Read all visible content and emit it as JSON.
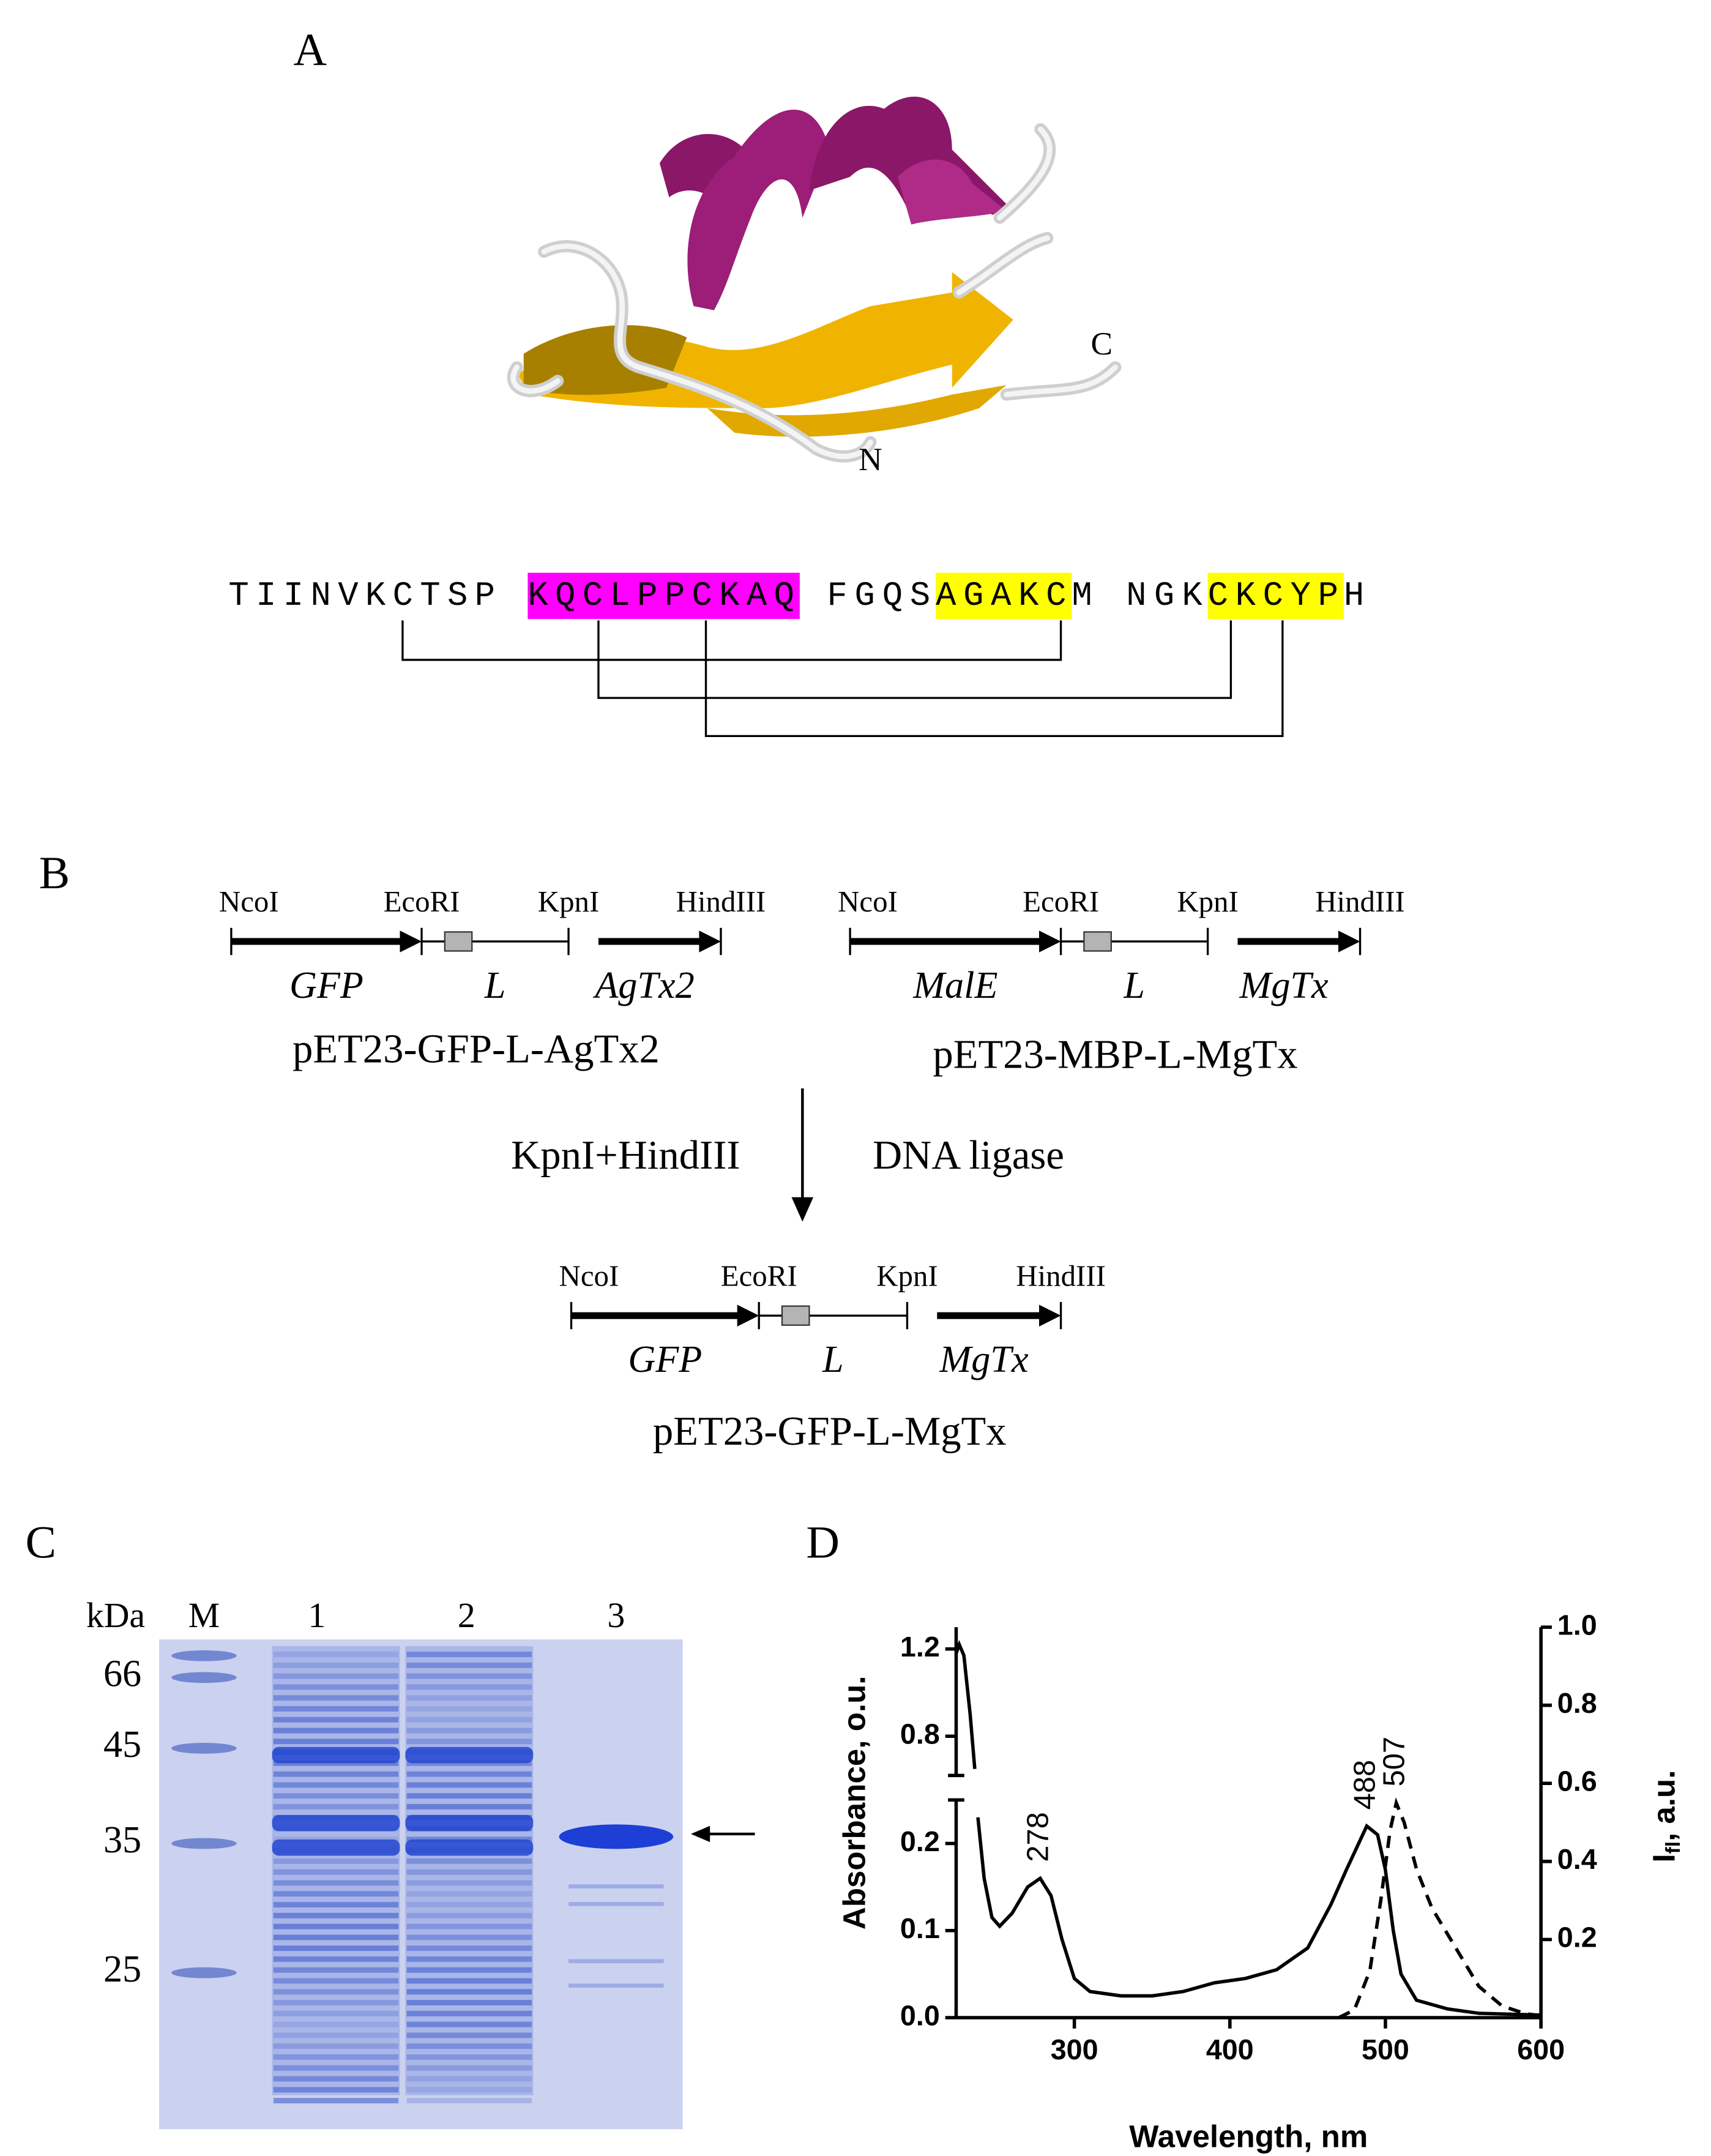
{
  "panel_a": {
    "label": "A",
    "termini": [
      "C",
      "N"
    ],
    "sequence": [
      [
        {
          "text": "TIINVKCTSP"
        }
      ],
      [
        {
          "text": "KQCLPPCKAQ",
          "color": "#ff00ff"
        }
      ],
      [
        {
          "text": "FGQS"
        },
        {
          "text": "AGAKC",
          "color": "#ffff00"
        },
        {
          "text": "M"
        }
      ],
      [
        {
          "text": "NGK"
        },
        {
          "text": "CKCYP",
          "color": "#ffff00"
        },
        {
          "text": "H"
        }
      ]
    ]
  },
  "panel_b": {
    "label": "B",
    "constructs": [
      {
        "sites": [
          "NcoI",
          "EcoRI",
          "KpnI",
          "HindIII"
        ],
        "genes": [
          "GFP",
          "L",
          "AgTx2"
        ],
        "name": "pET23-GFP-L-AgTx2"
      },
      {
        "sites": [
          "NcoI",
          "EcoRI",
          "KpnI",
          "HindIII"
        ],
        "genes": [
          "MalE",
          "L",
          "MgTx"
        ],
        "name": "pET23-MBP-L-MgTx"
      },
      {
        "sites": [
          "NcoI",
          "EcoRI",
          "KpnI",
          "HindIII"
        ],
        "genes": [
          "GFP",
          "L",
          "MgTx"
        ],
        "name": "pET23-GFP-L-MgTx"
      }
    ],
    "enzymes": "KpnI+HindIII",
    "ligase": "DNA ligase"
  },
  "panel_c": {
    "label": "C",
    "unit": "kDa",
    "lanes": [
      "M",
      "1",
      "2",
      "3"
    ],
    "markers": [
      "66",
      "45",
      "35",
      "25"
    ]
  },
  "panel_d": {
    "label": "D"
  },
  "chart_data": {
    "type": "line",
    "xlabel": "Wavelength, nm",
    "ylabel": "Absorbance, o.u.",
    "y2label": {
      "symbol": "I",
      "subscript": "fl",
      "unit": ", a.u."
    },
    "xlim": [
      224,
      600
    ],
    "xticks": [
      300,
      400,
      500,
      600
    ],
    "ylim": [
      0,
      1.3
    ],
    "y_break": [
      0.25,
      0.62
    ],
    "yticks": [
      {
        "value": 0,
        "label": "0.0"
      },
      0.1,
      0.2,
      0.8,
      1.2
    ],
    "y2lim": [
      0,
      1
    ],
    "y2ticks": [
      0.2,
      0.4,
      0.6,
      0.8,
      {
        "value": 1,
        "label": "1.0"
      }
    ],
    "series": [
      {
        "color": "#000000",
        "dashed": false,
        "x": [
          224,
          226,
          229,
          233,
          236,
          237,
          238,
          242,
          247,
          252,
          260,
          270,
          278,
          285,
          292,
          300,
          310,
          330,
          350,
          370,
          390,
          410,
          430,
          450,
          465,
          475,
          488,
          495,
          500,
          505,
          510,
          520,
          540,
          560,
          600
        ],
        "values": [
          1.18,
          1.22,
          1.17,
          0.9,
          0.65,
          null,
          0.23,
          0.16,
          0.115,
          0.105,
          0.12,
          0.15,
          0.16,
          0.14,
          0.09,
          0.045,
          0.03,
          0.025,
          0.025,
          0.03,
          0.04,
          0.045,
          0.055,
          0.08,
          0.13,
          0.17,
          0.22,
          0.21,
          0.17,
          0.1,
          0.05,
          0.02,
          0.01,
          0.005,
          0.003
        ]
      },
      {
        "color": "#000000",
        "dashed": true,
        "axis": "y2",
        "x": [
          470,
          480,
          490,
          497,
          503,
          507,
          512,
          520,
          530,
          545,
          560,
          575,
          590,
          600
        ],
        "values": [
          0,
          0.02,
          0.12,
          0.3,
          0.48,
          0.55,
          0.5,
          0.38,
          0.28,
          0.18,
          0.08,
          0.03,
          0.01,
          0.005
        ]
      }
    ],
    "annotations": [
      "278",
      "488",
      "507"
    ]
  }
}
